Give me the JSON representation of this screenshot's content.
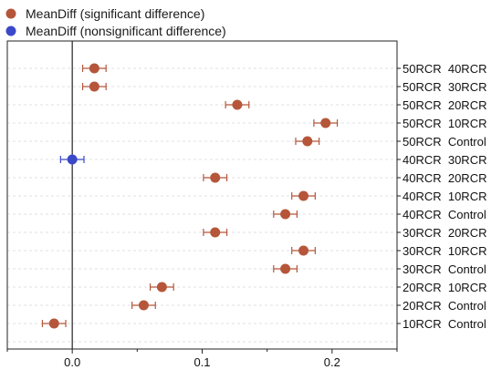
{
  "chart_data": {
    "type": "scatter",
    "orientation": "horizontal",
    "title": "",
    "xlabel": "",
    "ylabel": "",
    "xlim": [
      -0.05,
      0.25
    ],
    "xticks": [
      0.0,
      0.1,
      0.2
    ],
    "xtick_labels": [
      "0.0",
      "0.1",
      "0.2"
    ],
    "zero_line": true,
    "grid": "dashed horizontal",
    "legend": "top-left",
    "categories": [
      "50RCR  40RCR",
      "50RCR  30RCR",
      "50RCR  20RCR",
      "50RCR  10RCR",
      "50RCR  Control",
      "40RCR  30RCR",
      "40RCR  20RCR",
      "40RCR  10RCR",
      "40RCR  Control",
      "30RCR  20RCR",
      "30RCR  10RCR",
      "30RCR  Control",
      "20RCR  10RCR",
      "20RCR  Control",
      "10RCR  Control"
    ],
    "series": [
      {
        "name": "MeanDiff (significant difference)",
        "color": "#b5563a",
        "points": [
          {
            "category": "50RCR  40RCR",
            "x": 0.017,
            "err": 0.009
          },
          {
            "category": "50RCR  30RCR",
            "x": 0.017,
            "err": 0.009
          },
          {
            "category": "50RCR  20RCR",
            "x": 0.127,
            "err": 0.009
          },
          {
            "category": "50RCR  10RCR",
            "x": 0.195,
            "err": 0.009
          },
          {
            "category": "50RCR  Control",
            "x": 0.181,
            "err": 0.009
          },
          {
            "category": "40RCR  20RCR",
            "x": 0.11,
            "err": 0.009
          },
          {
            "category": "40RCR  10RCR",
            "x": 0.178,
            "err": 0.009
          },
          {
            "category": "40RCR  Control",
            "x": 0.164,
            "err": 0.009
          },
          {
            "category": "30RCR  20RCR",
            "x": 0.11,
            "err": 0.009
          },
          {
            "category": "30RCR  10RCR",
            "x": 0.178,
            "err": 0.009
          },
          {
            "category": "30RCR  Control",
            "x": 0.164,
            "err": 0.009
          },
          {
            "category": "20RCR  10RCR",
            "x": 0.069,
            "err": 0.009
          },
          {
            "category": "20RCR  Control",
            "x": 0.055,
            "err": 0.009
          },
          {
            "category": "10RCR  Control",
            "x": -0.014,
            "err": 0.009
          }
        ]
      },
      {
        "name": "MeanDiff (nonsignificant difference)",
        "color": "#3b49c8",
        "points": [
          {
            "category": "40RCR  30RCR",
            "x": 0.0,
            "err": 0.009
          }
        ]
      }
    ]
  }
}
